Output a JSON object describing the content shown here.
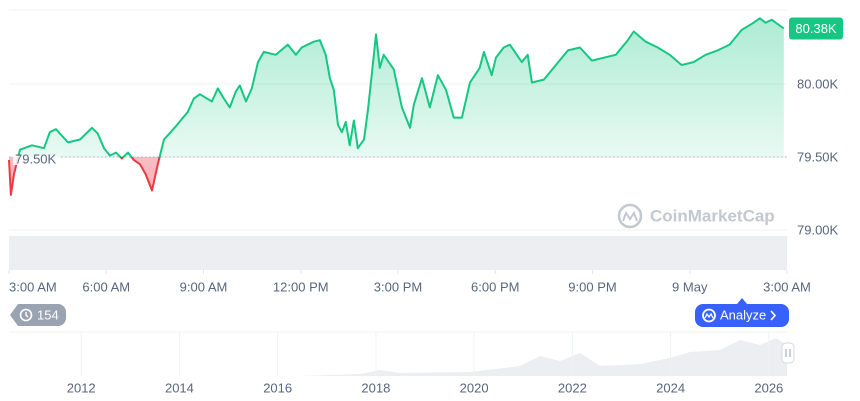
{
  "chart_data": {
    "type": "line",
    "x": [
      0,
      0.06,
      0.15,
      0.34,
      0.71,
      1.08,
      1.26,
      1.45,
      1.82,
      2.19,
      2.56,
      2.74,
      2.93,
      3.11,
      3.3,
      3.48,
      3.67,
      3.85,
      4.04,
      4.22,
      4.41,
      4.59,
      4.78,
      5.15,
      5.52,
      5.7,
      5.89,
      6.26,
      6.44,
      6.63,
      6.81,
      7.0,
      7.12,
      7.31,
      7.49,
      7.68,
      7.86,
      8.23,
      8.6,
      8.85,
      9.03,
      9.4,
      9.59,
      9.77,
      9.9,
      10.02,
      10.15,
      10.27,
      10.39,
      10.51,
      10.64,
      10.76,
      10.95,
      11.07,
      11.19,
      11.32,
      11.44,
      11.56,
      11.87,
      12.12,
      12.37,
      12.49,
      12.74,
      12.98,
      13.23,
      13.48,
      13.72,
      13.97,
      14.22,
      14.52,
      14.65,
      14.89,
      15.02,
      15.26,
      15.45,
      15.82,
      16.0,
      16.13,
      16.5,
      16.87,
      17.24,
      17.61,
      17.98,
      18.35,
      18.72,
      19.09,
      19.27,
      19.64,
      20.01,
      20.38,
      20.75,
      21.12,
      21.49,
      21.86,
      22.23,
      22.6,
      22.97,
      23.16,
      23.34,
      23.53,
      23.9
    ],
    "values": [
      79480,
      79240,
      79380,
      79550,
      79580,
      79560,
      79670,
      79690,
      79600,
      79620,
      79700,
      79660,
      79560,
      79510,
      79530,
      79490,
      79530,
      79480,
      79450,
      79380,
      79270,
      79450,
      79620,
      79710,
      79810,
      79900,
      79930,
      79880,
      79970,
      79900,
      79840,
      79950,
      79990,
      79880,
      79970,
      80150,
      80220,
      80200,
      80270,
      80200,
      80250,
      80290,
      80300,
      80200,
      80040,
      79960,
      79720,
      79670,
      79740,
      79580,
      79750,
      79560,
      79620,
      79820,
      80060,
      80340,
      80110,
      80200,
      80100,
      79840,
      79700,
      79860,
      80040,
      79840,
      80060,
      79960,
      79770,
      79770,
      80010,
      80110,
      80220,
      80060,
      80180,
      80250,
      80270,
      80150,
      80200,
      80010,
      80030,
      80130,
      80230,
      80250,
      80160,
      80180,
      80200,
      80300,
      80360,
      80290,
      80250,
      80200,
      80130,
      80150,
      80200,
      80230,
      80270,
      80370,
      80420,
      80450,
      80420,
      80440,
      80380
    ],
    "color": "#16c784",
    "below_color": "#ea3943",
    "baseline": {
      "value": 79500,
      "label": "79.50K"
    },
    "price_label": {
      "value": 80380,
      "label": "80.38K"
    },
    "xlim": [
      0,
      24
    ],
    "xticks": [
      {
        "value": 0,
        "label": "3:00 AM"
      },
      {
        "value": 3,
        "label": "6:00 AM"
      },
      {
        "value": 6,
        "label": "9:00 AM"
      },
      {
        "value": 9,
        "label": "12:00 PM"
      },
      {
        "value": 12,
        "label": "3:00 PM"
      },
      {
        "value": 15,
        "label": "6:00 PM"
      },
      {
        "value": 18,
        "label": "9:00 PM"
      },
      {
        "value": 21,
        "label": "9 May"
      },
      {
        "value": 24,
        "label": "3:00 AM"
      }
    ],
    "ylim": [
      78986,
      80507
    ],
    "yticks": [
      {
        "value": 79000,
        "label": "79.00K"
      },
      {
        "value": 79500,
        "label": "79.50K"
      },
      {
        "value": 80000,
        "label": "80.00K"
      }
    ],
    "grid": true
  },
  "watermark": "CoinMarketCap",
  "buttons": {
    "history": 154,
    "analyze": "Analyze"
  },
  "navigator": {
    "xlim": [
      2010.53,
      2026.37
    ],
    "xticks": [
      2012,
      2014,
      2016,
      2018,
      2020,
      2022,
      2024,
      2026
    ]
  }
}
